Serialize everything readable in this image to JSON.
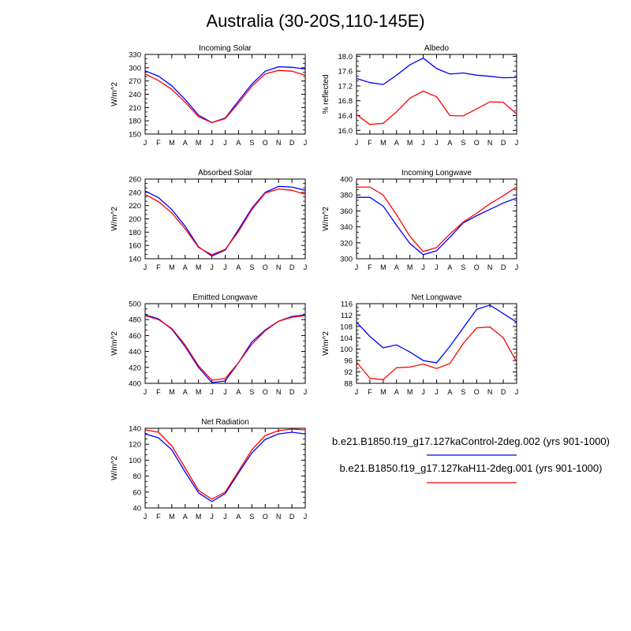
{
  "figure": {
    "title": "Australia (30-20S,110-145E)",
    "legend": [
      {
        "label": "b.e21.B1850.f19_g17.127kaControl-2deg.002 (yrs 901-1000)",
        "color": "#0000ff"
      },
      {
        "label": "b.e21.B1850.f19_g17.127kaH11-2deg.001 (yrs 901-1000)",
        "color": "#ff0000"
      }
    ]
  },
  "chart_data": [
    {
      "type": "line",
      "title": "Incoming Solar",
      "ylabel": "W/m^2",
      "categories": [
        "J",
        "F",
        "M",
        "A",
        "M",
        "J",
        "J",
        "A",
        "S",
        "O",
        "N",
        "D",
        "J"
      ],
      "ylim": [
        150,
        330
      ],
      "yticks": [
        150,
        180,
        210,
        240,
        270,
        300,
        330
      ],
      "series": [
        {
          "color": "#0000ff",
          "values": [
            293,
            281,
            259,
            228,
            193,
            176,
            186,
            225,
            263,
            292,
            302,
            301,
            297
          ]
        },
        {
          "color": "#ff0000",
          "values": [
            286,
            271,
            251,
            222,
            189,
            176,
            185,
            220,
            258,
            286,
            294,
            292,
            283
          ]
        }
      ]
    },
    {
      "type": "line",
      "title": "Albedo",
      "ylabel": "% reflected",
      "categories": [
        "J",
        "F",
        "M",
        "A",
        "M",
        "J",
        "J",
        "A",
        "S",
        "O",
        "N",
        "D",
        "J"
      ],
      "ylim": [
        15.9,
        18.05
      ],
      "yticks": [
        16.0,
        16.4,
        16.8,
        17.2,
        17.6,
        18.0
      ],
      "tickdecimals": 1,
      "series": [
        {
          "color": "#0000ff",
          "values": [
            17.4,
            17.29,
            17.24,
            17.49,
            17.77,
            17.95,
            17.67,
            17.52,
            17.55,
            17.49,
            17.46,
            17.42,
            17.43
          ]
        },
        {
          "color": "#ff0000",
          "values": [
            16.43,
            16.16,
            16.19,
            16.5,
            16.87,
            17.06,
            16.91,
            16.4,
            16.39,
            16.58,
            16.77,
            16.76,
            16.44
          ]
        }
      ]
    },
    {
      "type": "line",
      "title": "Absorbed Solar",
      "ylabel": "W/m^2",
      "categories": [
        "J",
        "F",
        "M",
        "A",
        "M",
        "J",
        "J",
        "A",
        "S",
        "O",
        "N",
        "D",
        "J"
      ],
      "ylim": [
        140,
        260
      ],
      "yticks": [
        140,
        160,
        180,
        200,
        220,
        240,
        260
      ],
      "series": [
        {
          "color": "#0000ff",
          "values": [
            242,
            232,
            214,
            189,
            158,
            144,
            153,
            184,
            216,
            240,
            249,
            248,
            243
          ]
        },
        {
          "color": "#ff0000",
          "values": [
            237,
            226,
            209,
            185,
            157,
            146,
            154,
            181,
            214,
            239,
            245,
            243,
            237
          ]
        }
      ]
    },
    {
      "type": "line",
      "title": "Incoming Longwave",
      "ylabel": "W/m^2",
      "categories": [
        "J",
        "F",
        "M",
        "A",
        "M",
        "J",
        "J",
        "A",
        "S",
        "O",
        "N",
        "D",
        "J"
      ],
      "ylim": [
        300,
        400
      ],
      "yticks": [
        300,
        320,
        340,
        360,
        380,
        400
      ],
      "series": [
        {
          "color": "#0000ff",
          "values": [
            377,
            377,
            366,
            342,
            319,
            305,
            310,
            327,
            345,
            354,
            362,
            370,
            376
          ]
        },
        {
          "color": "#ff0000",
          "values": [
            390,
            390,
            380,
            355,
            328,
            309,
            314,
            331,
            346,
            357,
            369,
            379,
            390
          ]
        }
      ]
    },
    {
      "type": "line",
      "title": "Emitted Longwave",
      "ylabel": "W/m^2",
      "categories": [
        "J",
        "F",
        "M",
        "A",
        "M",
        "J",
        "J",
        "A",
        "S",
        "O",
        "N",
        "D",
        "J"
      ],
      "ylim": [
        400,
        500
      ],
      "yticks": [
        400,
        420,
        440,
        460,
        480,
        500
      ],
      "series": [
        {
          "color": "#0000ff",
          "values": [
            486,
            481,
            468,
            446,
            420,
            401,
            403,
            426,
            452,
            467,
            478,
            484,
            486
          ]
        },
        {
          "color": "#ff0000",
          "values": [
            485,
            480,
            469,
            448,
            422,
            404,
            406,
            426,
            449,
            466,
            478,
            483,
            485
          ]
        }
      ]
    },
    {
      "type": "line",
      "title": "Net Longwave",
      "ylabel": "W/m^2",
      "categories": [
        "J",
        "F",
        "M",
        "A",
        "M",
        "J",
        "J",
        "A",
        "S",
        "O",
        "N",
        "D",
        "J"
      ],
      "ylim": [
        88,
        116
      ],
      "yticks": [
        88,
        92,
        96,
        100,
        104,
        108,
        112,
        116
      ],
      "series": [
        {
          "color": "#0000ff",
          "values": [
            109.5,
            104.5,
            100.5,
            101.5,
            99,
            96,
            95.2,
            101,
            107.5,
            114,
            115.5,
            112.5,
            109.5
          ]
        },
        {
          "color": "#ff0000",
          "values": [
            95.5,
            89.8,
            89.3,
            93.5,
            93.7,
            94.8,
            93.2,
            95,
            102,
            107.5,
            107.8,
            104,
            95.5
          ]
        }
      ]
    },
    {
      "type": "line",
      "title": "Net Radiation",
      "ylabel": "W/m^2",
      "categories": [
        "J",
        "F",
        "M",
        "A",
        "M",
        "J",
        "J",
        "A",
        "S",
        "O",
        "N",
        "D",
        "J"
      ],
      "ylim": [
        40,
        140
      ],
      "yticks": [
        40,
        60,
        80,
        100,
        120,
        140
      ],
      "series": [
        {
          "color": "#0000ff",
          "values": [
            133,
            128,
            113,
            85,
            59,
            48,
            58,
            84,
            109,
            126,
            133,
            135,
            133
          ]
        },
        {
          "color": "#ff0000",
          "values": [
            138,
            135,
            118,
            90,
            62,
            51,
            60,
            86,
            113,
            131,
            137,
            139,
            138
          ]
        }
      ]
    }
  ]
}
